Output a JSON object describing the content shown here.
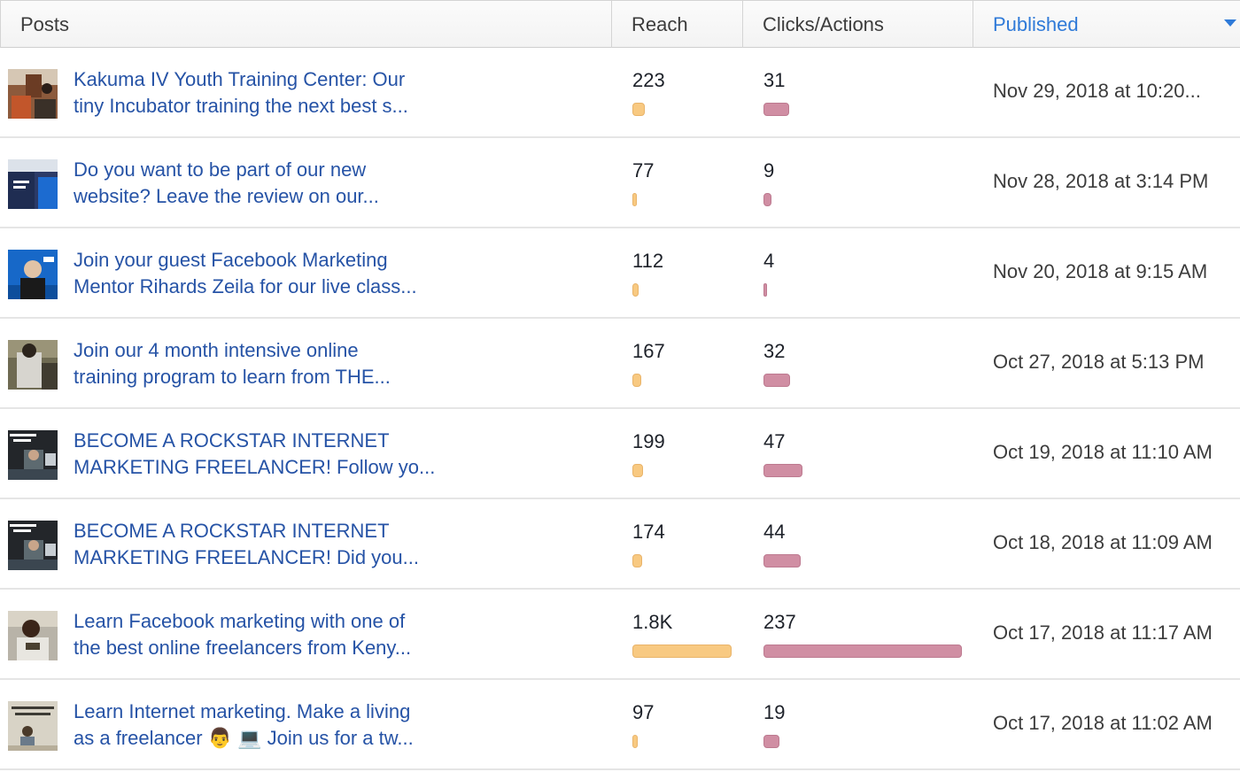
{
  "columns": {
    "posts": "Posts",
    "reach": "Reach",
    "clicks": "Clicks/Actions",
    "published": "Published"
  },
  "colors": {
    "link": "#2653a6",
    "sort_active": "#2f7ad8",
    "reach_bar": "#f8c981",
    "clicks_bar": "#d08ea3"
  },
  "rows": [
    {
      "line1": "Kakuma IV Youth Training Center: Our",
      "line2": "tiny Incubator training the next best s...",
      "reach": "223",
      "reach_value": 223,
      "clicks": "31",
      "clicks_value": 31,
      "published": "Nov 29, 2018 at 10:20...",
      "thumb": "kakuma-photo"
    },
    {
      "line1": "Do you want to be part of our new",
      "line2": "website? Leave the review on our...",
      "reach": "77",
      "reach_value": 77,
      "clicks": "9",
      "clicks_value": 9,
      "published": "Nov 28, 2018 at 3:14 PM",
      "thumb": "website-photo"
    },
    {
      "line1": "Join your guest Facebook Marketing",
      "line2": "Mentor Rihards Zeila for our live class...",
      "reach": "112",
      "reach_value": 112,
      "clicks": "4",
      "clicks_value": 4,
      "published": "Nov 20, 2018 at 9:15 AM",
      "thumb": "mentor-photo"
    },
    {
      "line1": "Join our 4 month intensive online",
      "line2": "training program to learn from THE...",
      "reach": "167",
      "reach_value": 167,
      "clicks": "32",
      "clicks_value": 32,
      "published": "Oct 27, 2018 at 5:13 PM",
      "thumb": "training-photo"
    },
    {
      "line1": "BECOME A ROCKSTAR INTERNET",
      "line2": "MARKETING FREELANCER! Follow yo...",
      "reach": "199",
      "reach_value": 199,
      "clicks": "47",
      "clicks_value": 47,
      "published": "Oct 19, 2018 at 11:10 AM",
      "thumb": "rockstar-photo"
    },
    {
      "line1": "BECOME A ROCKSTAR INTERNET",
      "line2": "MARKETING FREELANCER! Did you...",
      "reach": "174",
      "reach_value": 174,
      "clicks": "44",
      "clicks_value": 44,
      "published": "Oct 18, 2018 at 11:09 AM",
      "thumb": "rockstar-photo"
    },
    {
      "line1": "Learn Facebook marketing with one of",
      "line2": "the best online freelancers from Keny...",
      "reach": "1.8K",
      "reach_value": 1800,
      "clicks": "237",
      "clicks_value": 237,
      "published": "Oct 17, 2018 at 11:17 AM",
      "thumb": "freelancer-photo"
    },
    {
      "line1": "Learn Internet marketing. Make a living",
      "line2": "as a freelancer 👨 💻  Join us for a tw...",
      "reach": "97",
      "reach_value": 97,
      "clicks": "19",
      "clicks_value": 19,
      "published": "Oct 17, 2018 at 11:02 AM",
      "thumb": "internet-marketing-photo"
    }
  ]
}
